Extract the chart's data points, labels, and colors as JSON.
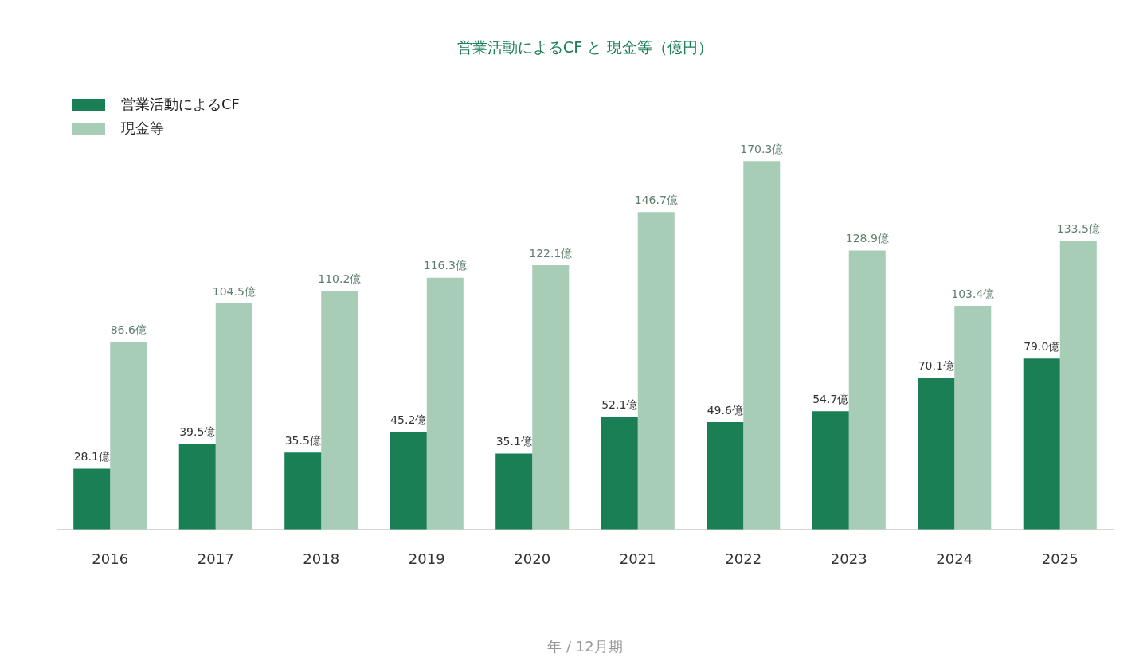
{
  "chart_data": {
    "type": "bar",
    "title": "営業活動によるCF と 現金等（億円）",
    "xlabel": "年 / 12月期",
    "categories": [
      "2016",
      "2017",
      "2018",
      "2019",
      "2020",
      "2021",
      "2022",
      "2023",
      "2024",
      "2025"
    ],
    "series": [
      {
        "name": "営業活動によるCF",
        "color": "#1b7f55",
        "values": [
          28.1,
          39.5,
          35.5,
          45.2,
          35.1,
          52.1,
          49.6,
          54.7,
          70.1,
          79.0
        ],
        "value_labels": [
          "28.1億",
          "39.5億",
          "35.5億",
          "45.2億",
          "35.1億",
          "52.1億",
          "49.6億",
          "54.7億",
          "70.1億",
          "79.0億"
        ]
      },
      {
        "name": "現金等",
        "color": "#a8cdb7",
        "values": [
          86.6,
          104.5,
          110.2,
          116.3,
          122.1,
          146.7,
          170.3,
          128.9,
          103.4,
          133.5
        ],
        "value_labels": [
          "86.6億",
          "104.5億",
          "110.2億",
          "116.3億",
          "122.1億",
          "146.7億",
          "170.3億",
          "128.9億",
          "103.4億",
          "133.5億"
        ]
      }
    ],
    "tick_labels": "x",
    "grid": false,
    "legend": "top left"
  }
}
